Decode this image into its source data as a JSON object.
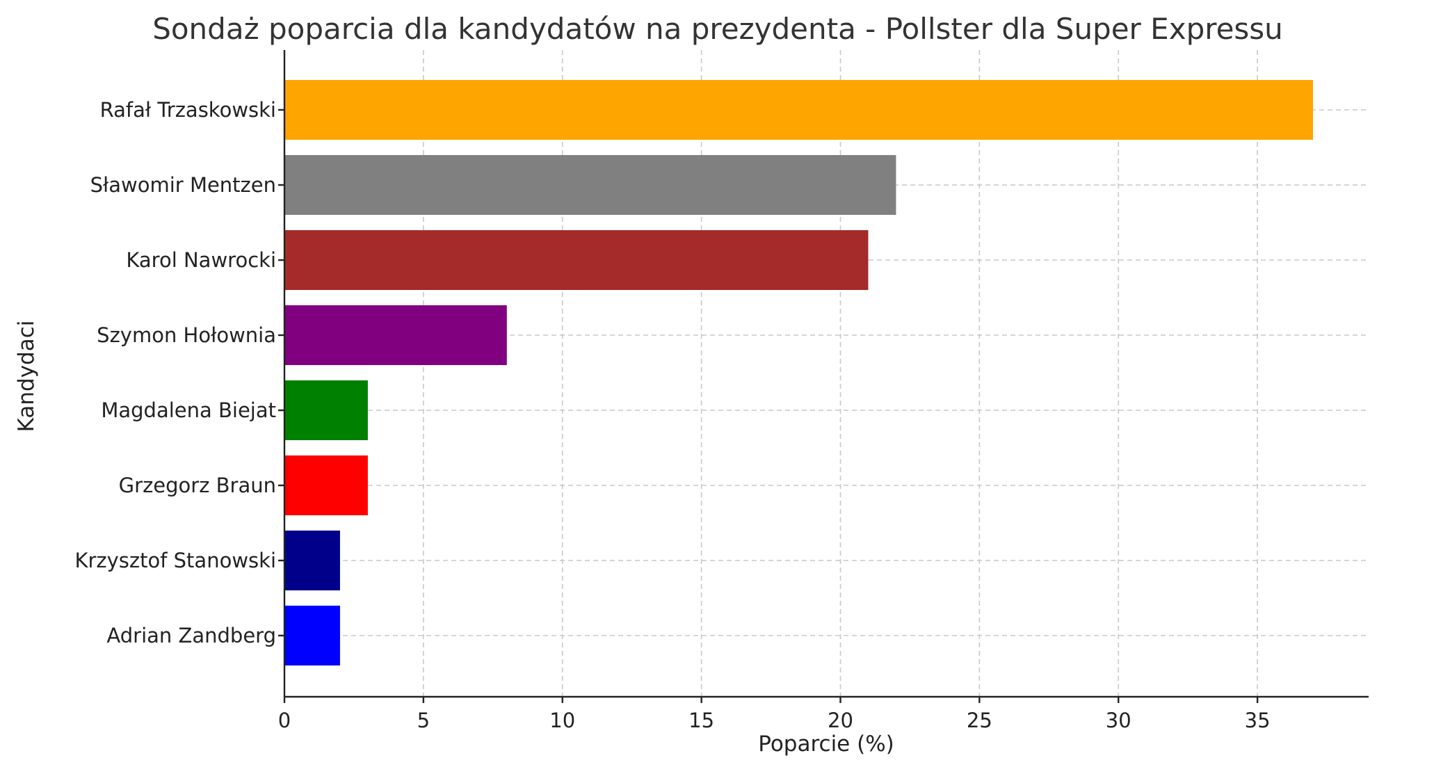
{
  "chart_data": {
    "type": "bar",
    "orientation": "horizontal",
    "title": "Sondaż poparcia dla kandydatów na prezydenta - Pollster dla Super Expressu",
    "xlabel": "Poparcie (%)",
    "ylabel": "Kandydaci",
    "xlim": [
      0,
      39
    ],
    "xticks": [
      0,
      5,
      10,
      15,
      20,
      25,
      30,
      35
    ],
    "grid": true,
    "categories": [
      "Rafał Trzaskowski",
      "Sławomir Mentzen",
      "Karol Nawrocki",
      "Szymon Hołownia",
      "Magdalena Biejat",
      "Grzegorz Braun",
      "Krzysztof Stanowski",
      "Adrian Zandberg"
    ],
    "values": [
      37,
      22,
      21,
      8,
      3,
      3,
      2,
      2
    ],
    "colors": [
      "#ffa500",
      "#808080",
      "#a52a2a",
      "#800080",
      "#008000",
      "#ff0000",
      "#00008b",
      "#0000ff"
    ]
  }
}
